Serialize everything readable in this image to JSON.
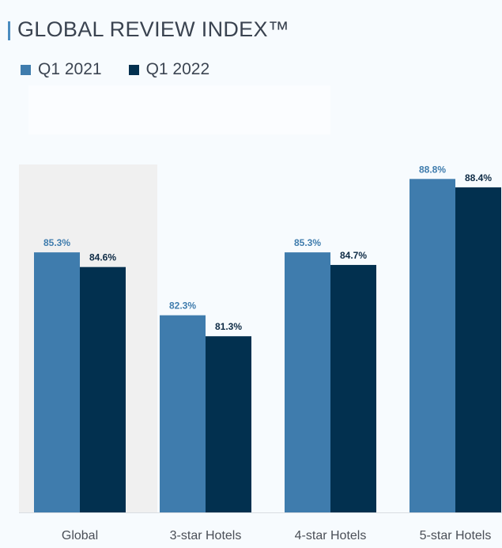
{
  "chart_data": {
    "type": "bar",
    "title": "GLOBAL REVIEW INDEX™",
    "categories": [
      "Global",
      "3-star Hotels",
      "4-star Hotels",
      "5-star Hotels"
    ],
    "series": [
      {
        "name": "Q1 2021",
        "values": [
          85.3,
          82.3,
          85.3,
          88.8
        ],
        "labels": [
          "85.3%",
          "82.3%",
          "85.3%",
          "88.8%"
        ],
        "color": "#3f7cad"
      },
      {
        "name": "Q1 2022",
        "values": [
          84.6,
          81.3,
          84.7,
          88.4
        ],
        "labels": [
          "84.6%",
          "81.3%",
          "84.7%",
          "88.4%"
        ],
        "color": "#02304f"
      }
    ],
    "highlighted_category": "Global",
    "highlight_color": "#f0f0f0",
    "ylim": [
      72.9,
      91.3
    ],
    "grid": false,
    "legend_position": "top-left",
    "xlabel": "",
    "ylabel": ""
  }
}
